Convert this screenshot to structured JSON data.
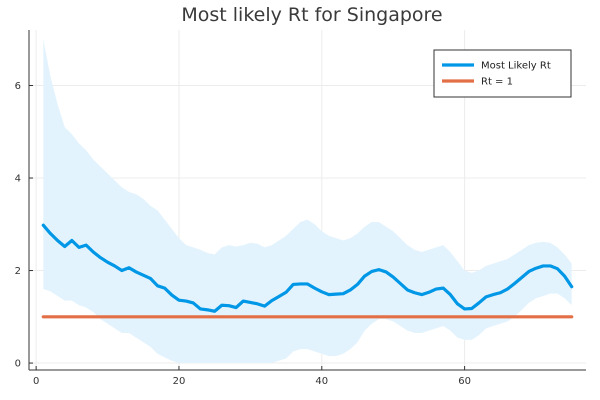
{
  "chart_data": {
    "type": "line",
    "title": "Most likely Rt for Singapore",
    "xlabel": "",
    "ylabel": "",
    "xlim": [
      -1,
      77
    ],
    "ylim": [
      -0.15,
      7.2
    ],
    "xticks": [
      0,
      20,
      40,
      60
    ],
    "yticks": [
      0,
      2,
      4,
      6
    ],
    "grid": true,
    "legend_position": "top-right",
    "x": [
      1,
      2,
      3,
      4,
      5,
      6,
      7,
      8,
      9,
      10,
      11,
      12,
      13,
      14,
      15,
      16,
      17,
      18,
      19,
      20,
      21,
      22,
      23,
      24,
      25,
      26,
      27,
      28,
      29,
      30,
      31,
      32,
      33,
      34,
      35,
      36,
      37,
      38,
      39,
      40,
      41,
      42,
      43,
      44,
      45,
      46,
      47,
      48,
      49,
      50,
      51,
      52,
      53,
      54,
      55,
      56,
      57,
      58,
      59,
      60,
      61,
      62,
      63,
      64,
      65,
      66,
      67,
      68,
      69,
      70,
      71,
      72,
      73,
      74,
      75
    ],
    "series": [
      {
        "name": "Most Likely Rt",
        "color": "#0097e6",
        "values": [
          2.98,
          2.8,
          2.65,
          2.52,
          2.65,
          2.5,
          2.55,
          2.4,
          2.28,
          2.18,
          2.1,
          2.0,
          2.06,
          1.97,
          1.9,
          1.83,
          1.67,
          1.62,
          1.47,
          1.36,
          1.34,
          1.3,
          1.17,
          1.15,
          1.12,
          1.25,
          1.24,
          1.2,
          1.34,
          1.31,
          1.28,
          1.23,
          1.35,
          1.44,
          1.53,
          1.7,
          1.71,
          1.71,
          1.62,
          1.54,
          1.48,
          1.49,
          1.5,
          1.58,
          1.7,
          1.88,
          1.98,
          2.02,
          1.97,
          1.86,
          1.72,
          1.58,
          1.52,
          1.48,
          1.53,
          1.6,
          1.62,
          1.48,
          1.28,
          1.17,
          1.18,
          1.3,
          1.43,
          1.48,
          1.52,
          1.6,
          1.72,
          1.85,
          1.98,
          2.05,
          2.1,
          2.1,
          2.04,
          1.88,
          1.65
        ]
      },
      {
        "name": "Rt = 1",
        "color": "#e26f46",
        "values": [
          1,
          1,
          1,
          1,
          1,
          1,
          1,
          1,
          1,
          1,
          1,
          1,
          1,
          1,
          1,
          1,
          1,
          1,
          1,
          1,
          1,
          1,
          1,
          1,
          1,
          1,
          1,
          1,
          1,
          1,
          1,
          1,
          1,
          1,
          1,
          1,
          1,
          1,
          1,
          1,
          1,
          1,
          1,
          1,
          1,
          1,
          1,
          1,
          1,
          1,
          1,
          1,
          1,
          1,
          1,
          1,
          1,
          1,
          1,
          1,
          1,
          1,
          1,
          1,
          1,
          1,
          1,
          1,
          1,
          1,
          1,
          1,
          1,
          1,
          1
        ]
      }
    ],
    "band": {
      "color": "#e3f3fd",
      "upper": [
        7.0,
        6.2,
        5.6,
        5.1,
        4.95,
        4.75,
        4.6,
        4.4,
        4.25,
        4.1,
        3.95,
        3.8,
        3.7,
        3.65,
        3.55,
        3.4,
        3.3,
        3.1,
        2.9,
        2.7,
        2.55,
        2.5,
        2.45,
        2.38,
        2.35,
        2.5,
        2.55,
        2.52,
        2.55,
        2.6,
        2.58,
        2.5,
        2.55,
        2.65,
        2.75,
        2.9,
        3.05,
        3.1,
        3.0,
        2.85,
        2.75,
        2.7,
        2.65,
        2.7,
        2.8,
        2.95,
        3.05,
        3.05,
        2.95,
        2.85,
        2.7,
        2.55,
        2.45,
        2.4,
        2.45,
        2.5,
        2.55,
        2.4,
        2.2,
        2.0,
        1.95,
        2.0,
        2.1,
        2.15,
        2.2,
        2.25,
        2.35,
        2.45,
        2.55,
        2.6,
        2.62,
        2.6,
        2.5,
        2.35,
        2.15
      ],
      "lower": [
        1.6,
        1.55,
        1.45,
        1.35,
        1.35,
        1.25,
        1.2,
        1.1,
        0.95,
        0.85,
        0.75,
        0.65,
        0.65,
        0.55,
        0.45,
        0.35,
        0.2,
        0.12,
        0.05,
        0.0,
        0.0,
        0.0,
        0.0,
        0.0,
        0.0,
        0.0,
        0.0,
        0.0,
        0.0,
        0.0,
        0.0,
        0.0,
        0.0,
        0.05,
        0.1,
        0.25,
        0.3,
        0.3,
        0.25,
        0.2,
        0.15,
        0.15,
        0.2,
        0.3,
        0.45,
        0.7,
        0.85,
        0.95,
        0.95,
        0.9,
        0.8,
        0.7,
        0.65,
        0.65,
        0.7,
        0.75,
        0.8,
        0.7,
        0.55,
        0.5,
        0.5,
        0.6,
        0.75,
        0.8,
        0.85,
        0.9,
        1.0,
        1.15,
        1.3,
        1.4,
        1.45,
        1.5,
        1.5,
        1.4,
        1.25
      ]
    }
  }
}
